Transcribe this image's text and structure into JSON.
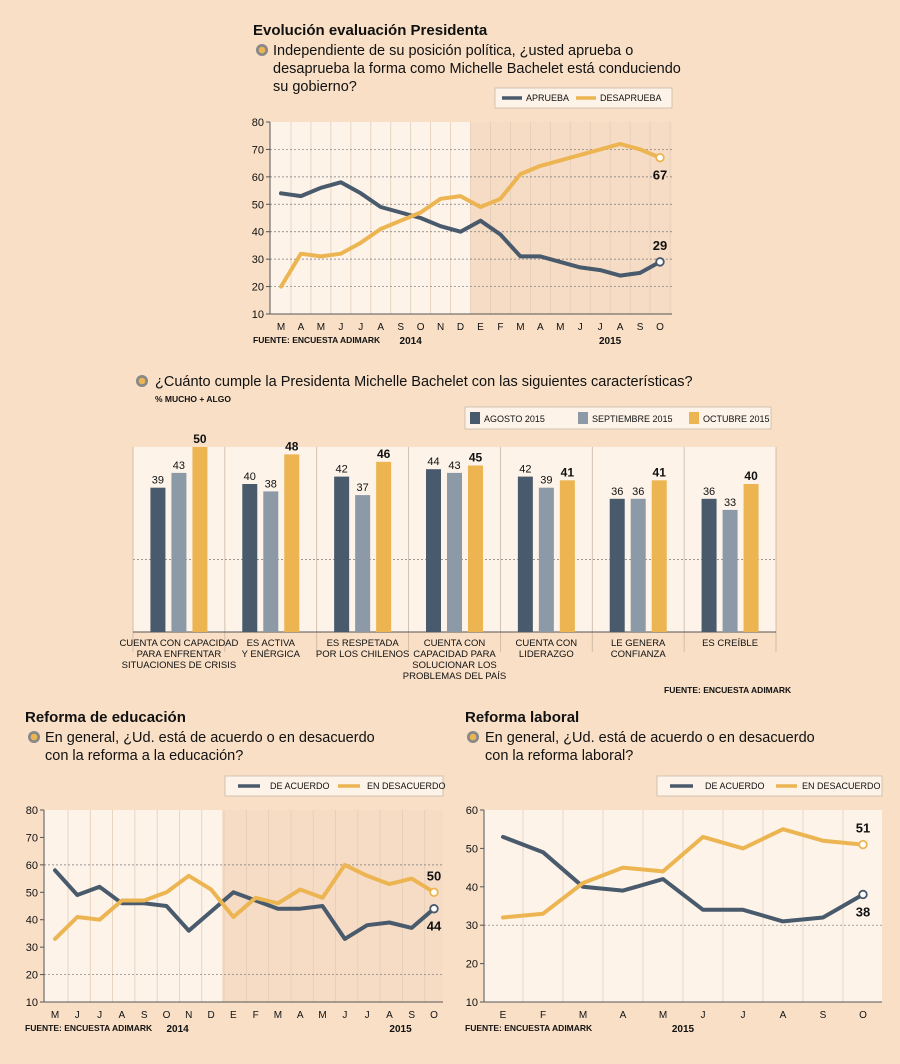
{
  "colors": {
    "background": "#f8dfc6",
    "panel_light": "#fdf3e9",
    "panel_dark": "#f6dcc5",
    "dark": "#485a6c",
    "gray": "#8c9aa8",
    "gold": "#ecb552",
    "bullet_outer": "#888888",
    "bullet_inner": "#ecb552"
  },
  "chart_data": [
    {
      "id": "presidenta",
      "type": "line",
      "title": "Evolución evaluación Presidenta",
      "question_lines": [
        "Independiente de su posición política, ¿usted aprueba o",
        "desaprueba la forma como Michelle Bachelet está conduciendo",
        "su gobierno?"
      ],
      "source": "FUENTE: ENCUESTA ADIMARK",
      "x": [
        "M",
        "A",
        "M",
        "J",
        "J",
        "A",
        "S",
        "O",
        "N",
        "D",
        "E",
        "F",
        "M",
        "A",
        "M",
        "J",
        "J",
        "A",
        "S",
        "O"
      ],
      "year_labels": [
        {
          "label": "2014",
          "center_index": 6.5
        },
        {
          "label": "2015",
          "center_index": 16.5
        }
      ],
      "ylim": [
        10,
        80
      ],
      "yticks": [
        10,
        20,
        30,
        40,
        50,
        60,
        70,
        80
      ],
      "dashed_lines": [
        20,
        30,
        40,
        50,
        60,
        70
      ],
      "split_index": 10,
      "series": [
        {
          "name": "APRUEBA",
          "color": "dark",
          "values": [
            54,
            53,
            56,
            58,
            54,
            49,
            47,
            45,
            42,
            40,
            44,
            39,
            31,
            31,
            29,
            27,
            26,
            24,
            25,
            29
          ],
          "end_label": "29",
          "end_label_pos": "above"
        },
        {
          "name": "DESAPRUEBA",
          "color": "gold",
          "values": [
            20,
            32,
            31,
            32,
            36,
            41,
            44,
            47,
            52,
            53,
            49,
            52,
            61,
            64,
            66,
            68,
            70,
            72,
            70,
            67
          ],
          "end_label": "67",
          "end_label_pos": "below"
        }
      ]
    },
    {
      "id": "caracteristicas",
      "type": "bar",
      "title": "¿Cuánto cumple la Presidenta Michelle Bachelet con las siguientes características?",
      "subtitle": "% MUCHO + ALGO",
      "source": "FUENTE: ENCUESTA ADIMARK",
      "ylim": [
        0,
        50
      ],
      "categories": [
        [
          "CUENTA CON CAPACIDAD",
          "PARA ENFRENTAR",
          "SITUACIONES DE CRISIS"
        ],
        [
          "ES ACTIVA",
          "Y ENÉRGICA"
        ],
        [
          "ES RESPETADA",
          "POR LOS CHILENOS"
        ],
        [
          "CUENTA CON",
          "CAPACIDAD PARA",
          "SOLUCIONAR LOS",
          "PROBLEMAS DEL PAÍS"
        ],
        [
          "CUENTA CON",
          "LIDERAZGO"
        ],
        [
          "LE GENERA",
          "CONFIANZA"
        ],
        [
          "ES CREÍBLE"
        ]
      ],
      "series": [
        {
          "name": "AGOSTO 2015",
          "color": "dark",
          "values": [
            39,
            40,
            42,
            44,
            42,
            36,
            36
          ]
        },
        {
          "name": "SEPTIEMBRE 2015",
          "color": "gray",
          "values": [
            43,
            38,
            37,
            43,
            39,
            36,
            33
          ]
        },
        {
          "name": "OCTUBRE 2015",
          "color": "gold",
          "values": [
            50,
            48,
            46,
            45,
            41,
            41,
            40
          ]
        }
      ]
    },
    {
      "id": "educacion",
      "type": "line",
      "title": "Reforma de educación",
      "question_lines": [
        "En general, ¿Ud. está de acuerdo o en desacuerdo",
        "con la reforma a la educación?"
      ],
      "source": "FUENTE: ENCUESTA ADIMARK",
      "x": [
        "M",
        "J",
        "J",
        "A",
        "S",
        "O",
        "N",
        "D",
        "E",
        "F",
        "M",
        "A",
        "M",
        "J",
        "J",
        "A",
        "S",
        "O"
      ],
      "year_labels": [
        {
          "label": "2014",
          "center_index": 5.5
        },
        {
          "label": "2015",
          "center_index": 15.5
        }
      ],
      "ylim": [
        10,
        80
      ],
      "yticks": [
        10,
        20,
        30,
        40,
        50,
        60,
        70,
        80
      ],
      "dashed_lines": [
        20,
        60
      ],
      "split_index": 8,
      "series": [
        {
          "name": "DE ACUERDO",
          "color": "dark",
          "values": [
            58,
            49,
            52,
            46,
            46,
            45,
            36,
            43,
            50,
            47,
            44,
            44,
            45,
            33,
            38,
            39,
            37,
            44
          ],
          "end_label": "44",
          "end_label_pos": "below"
        },
        {
          "name": "EN DESACUERDO",
          "color": "gold",
          "values": [
            33,
            41,
            40,
            47,
            47,
            50,
            56,
            51,
            41,
            48,
            46,
            51,
            48,
            60,
            56,
            53,
            55,
            50
          ],
          "end_label": "50",
          "end_label_pos": "above"
        }
      ]
    },
    {
      "id": "laboral",
      "type": "line",
      "title": "Reforma laboral",
      "question_lines": [
        "En general, ¿Ud. está de acuerdo o en desacuerdo",
        "con la reforma laboral?"
      ],
      "source": "FUENTE: ENCUESTA ADIMARK",
      "x": [
        "E",
        "F",
        "M",
        "A",
        "M",
        "J",
        "J",
        "A",
        "S",
        "O"
      ],
      "year_labels": [
        {
          "label": "2015",
          "center_index": 4.5
        }
      ],
      "ylim": [
        10,
        60
      ],
      "yticks": [
        10,
        20,
        30,
        40,
        50,
        60
      ],
      "dashed_lines": [
        30
      ],
      "split_index": null,
      "series": [
        {
          "name": "DE ACUERDO",
          "color": "dark",
          "values": [
            53,
            49,
            40,
            39,
            42,
            34,
            34,
            31,
            32,
            38
          ],
          "end_label": "38",
          "end_label_pos": "below"
        },
        {
          "name": "EN DESACUERDO",
          "color": "gold",
          "values": [
            32,
            33,
            41,
            45,
            44,
            53,
            50,
            55,
            52,
            51
          ],
          "end_label": "51",
          "end_label_pos": "above"
        }
      ]
    }
  ]
}
